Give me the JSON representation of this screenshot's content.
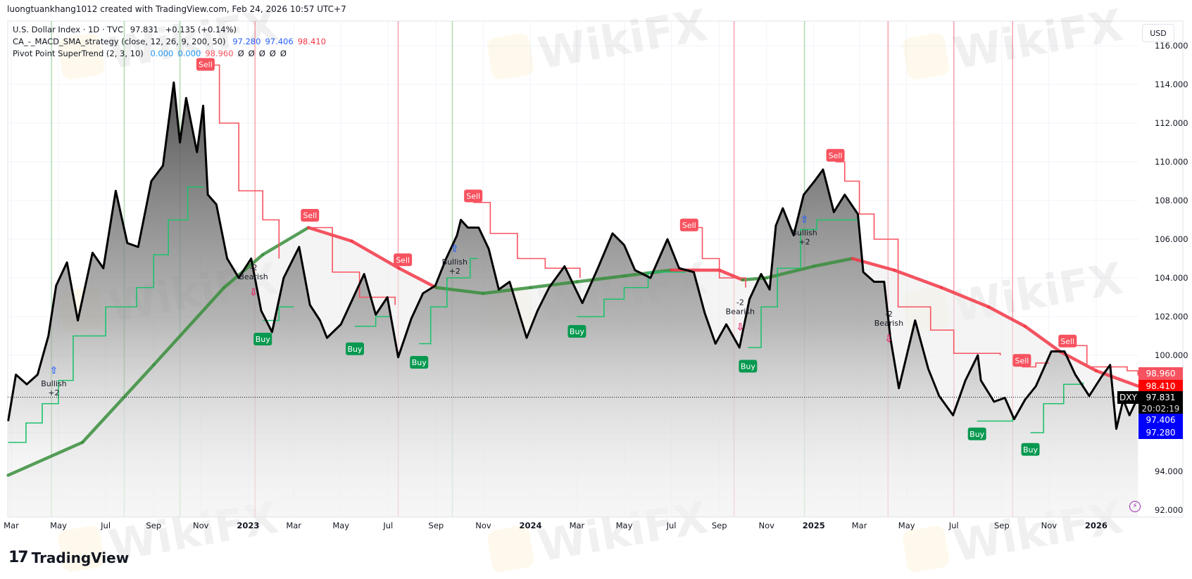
{
  "header": {
    "credit": "luongtuankhang1012 created with TradingView.com, Feb 24, 2026 10:57 UTC+7"
  },
  "legend": {
    "symbol": {
      "title": "U.S. Dollar Index · 1D · TVC",
      "price": "97.831",
      "change": "+0.135 (+0.14%)"
    },
    "strategy": {
      "title": "CA_-_MACD_SMA_strategy (close, 12, 26, 9, 200, 50)",
      "values": [
        "97.280",
        "97.406",
        "98.410"
      ],
      "colors": [
        "#2962ff",
        "#2962ff",
        "#f23645"
      ]
    },
    "supertrend": {
      "title": "Pivot Point SuperTrend (2, 3, 10)",
      "values": [
        "0.000",
        "0.000",
        "98.960",
        "Ø",
        "Ø",
        "Ø",
        "Ø",
        "Ø"
      ],
      "colors": [
        "#2196f3",
        "#2196f3",
        "#f7525f",
        "#131722",
        "#131722",
        "#131722",
        "#131722",
        "#131722"
      ]
    }
  },
  "currency": "USD",
  "watermark": "WikiFX",
  "branding": {
    "logo": "TradingView"
  },
  "price_tags": {
    "supertrend": {
      "value": "98.960",
      "color": "#f7525f"
    },
    "sma200": {
      "value": "98.410",
      "color": "#ff0000"
    },
    "last": {
      "symbol": "DXY",
      "value": "97.831",
      "countdown": "20:02:19",
      "color": "#000000"
    },
    "ma_a": {
      "value": "97.406",
      "color": "#0000ff"
    },
    "ma_b": {
      "value": "97.280",
      "color": "#0000ff"
    }
  },
  "chart_data": {
    "type": "line",
    "symbol": "DXY",
    "y_ticks": [
      "116.000",
      "114.000",
      "112.000",
      "110.000",
      "108.000",
      "106.000",
      "104.000",
      "102.000",
      "100.000",
      "94.000",
      "92.000"
    ],
    "x_ticks": [
      {
        "label": "Mar",
        "date": "2022-03-01"
      },
      {
        "label": "May",
        "date": "2022-05-01"
      },
      {
        "label": "Jul",
        "date": "2022-07-01"
      },
      {
        "label": "Sep",
        "date": "2022-09-01"
      },
      {
        "label": "Nov",
        "date": "2022-11-01"
      },
      {
        "label": "2023",
        "date": "2023-01-01"
      },
      {
        "label": "Mar",
        "date": "2023-03-01"
      },
      {
        "label": "May",
        "date": "2023-05-01"
      },
      {
        "label": "Jul",
        "date": "2023-07-01"
      },
      {
        "label": "Sep",
        "date": "2023-09-01"
      },
      {
        "label": "Nov",
        "date": "2023-11-01"
      },
      {
        "label": "2024",
        "date": "2024-01-01"
      },
      {
        "label": "Mar",
        "date": "2024-03-01"
      },
      {
        "label": "May",
        "date": "2024-05-01"
      },
      {
        "label": "Jul",
        "date": "2024-07-01"
      },
      {
        "label": "Sep",
        "date": "2024-09-01"
      },
      {
        "label": "Nov",
        "date": "2024-11-01"
      },
      {
        "label": "2025",
        "date": "2025-01-01"
      },
      {
        "label": "Mar",
        "date": "2025-03-01"
      },
      {
        "label": "May",
        "date": "2025-05-01"
      },
      {
        "label": "Jul",
        "date": "2025-07-01"
      },
      {
        "label": "Sep",
        "date": "2025-09-01"
      },
      {
        "label": "Nov",
        "date": "2025-11-01"
      },
      {
        "label": "2026",
        "date": "2026-01-01"
      }
    ],
    "close": [
      [
        "2022-02-25",
        96.6
      ],
      [
        "2022-03-07",
        99.0
      ],
      [
        "2022-03-21",
        98.5
      ],
      [
        "2022-04-04",
        99.0
      ],
      [
        "2022-04-18",
        101.0
      ],
      [
        "2022-04-28",
        103.6
      ],
      [
        "2022-05-12",
        104.8
      ],
      [
        "2022-05-26",
        101.8
      ],
      [
        "2022-06-14",
        105.3
      ],
      [
        "2022-06-28",
        104.5
      ],
      [
        "2022-07-14",
        108.5
      ],
      [
        "2022-07-29",
        105.8
      ],
      [
        "2022-08-12",
        105.6
      ],
      [
        "2022-08-29",
        109.0
      ],
      [
        "2022-09-13",
        109.8
      ],
      [
        "2022-09-27",
        114.1
      ],
      [
        "2022-10-05",
        111.0
      ],
      [
        "2022-10-13",
        113.3
      ],
      [
        "2022-10-27",
        110.5
      ],
      [
        "2022-11-04",
        112.9
      ],
      [
        "2022-11-10",
        108.3
      ],
      [
        "2022-11-21",
        107.8
      ],
      [
        "2022-12-05",
        105.0
      ],
      [
        "2022-12-20",
        104.0
      ],
      [
        "2023-01-05",
        105.0
      ],
      [
        "2023-01-18",
        102.3
      ],
      [
        "2023-02-01",
        101.2
      ],
      [
        "2023-02-16",
        104.0
      ],
      [
        "2023-03-08",
        105.6
      ],
      [
        "2023-03-22",
        102.6
      ],
      [
        "2023-04-04",
        101.8
      ],
      [
        "2023-04-13",
        100.9
      ],
      [
        "2023-05-01",
        101.6
      ],
      [
        "2023-05-31",
        104.2
      ],
      [
        "2023-06-15",
        102.1
      ],
      [
        "2023-06-30",
        103.0
      ],
      [
        "2023-07-14",
        99.9
      ],
      [
        "2023-07-31",
        101.9
      ],
      [
        "2023-08-15",
        103.2
      ],
      [
        "2023-08-31",
        103.6
      ],
      [
        "2023-09-14",
        105.0
      ],
      [
        "2023-09-28",
        106.2
      ],
      [
        "2023-10-03",
        107.0
      ],
      [
        "2023-10-12",
        106.6
      ],
      [
        "2023-10-26",
        106.6
      ],
      [
        "2023-11-08",
        105.5
      ],
      [
        "2023-11-21",
        103.4
      ],
      [
        "2023-12-05",
        103.8
      ],
      [
        "2023-12-27",
        100.9
      ],
      [
        "2024-01-10",
        102.3
      ],
      [
        "2024-01-25",
        103.5
      ],
      [
        "2024-02-14",
        104.6
      ],
      [
        "2024-03-08",
        102.7
      ],
      [
        "2024-03-28",
        104.5
      ],
      [
        "2024-04-16",
        106.3
      ],
      [
        "2024-05-01",
        105.7
      ],
      [
        "2024-05-15",
        104.4
      ],
      [
        "2024-06-04",
        104.0
      ],
      [
        "2024-06-26",
        106.0
      ],
      [
        "2024-07-11",
        104.5
      ],
      [
        "2024-07-30",
        104.3
      ],
      [
        "2024-08-13",
        102.2
      ],
      [
        "2024-08-27",
        100.6
      ],
      [
        "2024-09-10",
        101.6
      ],
      [
        "2024-09-27",
        100.4
      ],
      [
        "2024-10-10",
        102.9
      ],
      [
        "2024-10-25",
        104.2
      ],
      [
        "2024-11-05",
        103.4
      ],
      [
        "2024-11-13",
        106.7
      ],
      [
        "2024-11-22",
        107.6
      ],
      [
        "2024-12-06",
        106.2
      ],
      [
        "2024-12-19",
        108.3
      ],
      [
        "2025-01-02",
        109.0
      ],
      [
        "2025-01-13",
        109.6
      ],
      [
        "2025-01-27",
        107.4
      ],
      [
        "2025-02-10",
        108.3
      ],
      [
        "2025-02-27",
        107.3
      ],
      [
        "2025-03-06",
        104.3
      ],
      [
        "2025-03-20",
        103.8
      ],
      [
        "2025-04-02",
        103.8
      ],
      [
        "2025-04-10",
        100.9
      ],
      [
        "2025-04-21",
        98.3
      ],
      [
        "2025-05-12",
        101.8
      ],
      [
        "2025-05-29",
        99.3
      ],
      [
        "2025-06-12",
        97.9
      ],
      [
        "2025-06-30",
        96.9
      ],
      [
        "2025-07-16",
        98.7
      ],
      [
        "2025-08-01",
        100.0
      ],
      [
        "2025-08-05",
        98.7
      ],
      [
        "2025-08-22",
        97.6
      ],
      [
        "2025-09-05",
        97.8
      ],
      [
        "2025-09-17",
        96.7
      ],
      [
        "2025-10-01",
        97.7
      ],
      [
        "2025-10-15",
        98.4
      ],
      [
        "2025-11-04",
        100.2
      ],
      [
        "2025-11-21",
        100.2
      ],
      [
        "2025-12-05",
        99.0
      ],
      [
        "2025-12-23",
        97.9
      ],
      [
        "2026-01-08",
        98.9
      ],
      [
        "2026-01-19",
        99.5
      ],
      [
        "2026-01-27",
        96.2
      ],
      [
        "2026-02-05",
        97.7
      ],
      [
        "2026-02-13",
        96.9
      ],
      [
        "2026-02-24",
        97.831
      ]
    ],
    "sma200": [
      [
        "2022-02-25",
        93.8,
        "up"
      ],
      [
        "2022-06-01",
        95.5,
        "up"
      ],
      [
        "2022-09-01",
        99.5,
        "up"
      ],
      [
        "2022-12-01",
        103.5,
        "up"
      ],
      [
        "2023-01-20",
        105.2,
        "up"
      ],
      [
        "2023-03-20",
        106.6,
        "up"
      ],
      [
        "2023-05-15",
        105.9,
        "down"
      ],
      [
        "2023-07-15",
        104.5,
        "down"
      ],
      [
        "2023-09-01",
        103.5,
        "down"
      ],
      [
        "2023-11-01",
        103.2,
        "up"
      ],
      [
        "2024-01-01",
        103.5,
        "up"
      ],
      [
        "2024-03-01",
        103.8,
        "up"
      ],
      [
        "2024-05-01",
        104.1,
        "up"
      ],
      [
        "2024-07-01",
        104.4,
        "up"
      ],
      [
        "2024-09-01",
        104.4,
        "down"
      ],
      [
        "2024-10-01",
        103.9,
        "down"
      ],
      [
        "2024-11-01",
        104.0,
        "up"
      ],
      [
        "2025-01-01",
        104.6,
        "up"
      ],
      [
        "2025-02-20",
        105.0,
        "up"
      ],
      [
        "2025-04-15",
        104.4,
        "down"
      ],
      [
        "2025-06-15",
        103.5,
        "down"
      ],
      [
        "2025-08-15",
        102.5,
        "down"
      ],
      [
        "2025-10-01",
        101.5,
        "down"
      ],
      [
        "2025-11-15",
        100.2,
        "down"
      ],
      [
        "2026-01-01",
        99.2,
        "down"
      ],
      [
        "2026-02-24",
        98.41,
        "down"
      ]
    ],
    "supertrend_down": [
      [
        [
          "2022-11-07",
          115.0
        ],
        [
          "2022-11-25",
          112.0
        ],
        [
          "2022-12-20",
          108.5
        ],
        [
          "2023-01-20",
          107.0
        ],
        [
          "2023-02-10",
          105.0
        ]
      ],
      [
        [
          "2023-03-22",
          106.6
        ],
        [
          "2023-04-20",
          104.3
        ],
        [
          "2023-05-25",
          103.0
        ],
        [
          "2023-07-10",
          102.6
        ]
      ],
      [
        [
          "2023-10-19",
          107.9
        ],
        [
          "2023-11-10",
          106.3
        ],
        [
          "2023-12-15",
          105.0
        ],
        [
          "2024-01-20",
          104.5
        ],
        [
          "2024-03-05",
          104.0
        ]
      ],
      [
        [
          "2024-07-24",
          106.6
        ],
        [
          "2024-08-10",
          105.0
        ],
        [
          "2024-09-01",
          104.0
        ],
        [
          "2024-10-05",
          103.5
        ]
      ],
      [
        [
          "2025-01-29",
          110.0
        ],
        [
          "2025-02-10",
          109.0
        ],
        [
          "2025-03-01",
          107.3
        ],
        [
          "2025-03-20",
          106.0
        ],
        [
          "2025-04-20",
          102.5
        ],
        [
          "2025-06-01",
          101.3
        ],
        [
          "2025-07-01",
          100.1
        ],
        [
          "2025-08-30",
          100.0
        ]
      ],
      [
        [
          "2025-09-27",
          99.4
        ],
        [
          "2025-10-15",
          99.6
        ],
        [
          "2025-11-01",
          99.6
        ]
      ],
      [
        [
          "2025-11-25",
          100.5
        ],
        [
          "2025-12-20",
          99.4
        ],
        [
          "2026-02-10",
          99.2
        ],
        [
          "2026-02-24",
          98.96
        ]
      ]
    ],
    "supertrend_up": [
      [
        [
          "2022-02-25",
          95.5
        ],
        [
          "2022-03-20",
          96.5
        ],
        [
          "2022-04-10",
          97.5
        ],
        [
          "2022-05-01",
          98.7
        ],
        [
          "2022-05-20",
          101.0
        ],
        [
          "2022-07-01",
          102.5
        ],
        [
          "2022-08-10",
          103.5
        ],
        [
          "2022-09-01",
          105.2
        ],
        [
          "2022-09-20",
          107.0
        ],
        [
          "2022-10-15",
          108.7
        ],
        [
          "2022-11-05",
          108.7
        ]
      ],
      [
        [
          "2023-01-20",
          101.8
        ],
        [
          "2023-02-10",
          102.5
        ],
        [
          "2023-03-01",
          102.5
        ]
      ],
      [
        [
          "2023-05-19",
          101.5
        ],
        [
          "2023-06-15",
          102.0
        ],
        [
          "2023-07-05",
          102.0
        ]
      ],
      [
        [
          "2023-08-10",
          100.6
        ],
        [
          "2023-08-25",
          102.5
        ],
        [
          "2023-09-15",
          104.0
        ],
        [
          "2023-10-15",
          105.0
        ],
        [
          "2023-10-25",
          105.0
        ]
      ],
      [
        [
          "2024-03-01",
          102.0
        ],
        [
          "2024-04-05",
          102.9
        ],
        [
          "2024-05-01",
          103.5
        ],
        [
          "2024-06-01",
          104.3
        ],
        [
          "2024-07-20",
          104.3
        ]
      ],
      [
        [
          "2024-10-08",
          100.4
        ],
        [
          "2024-10-25",
          102.5
        ],
        [
          "2024-11-15",
          104.5
        ],
        [
          "2024-12-15",
          106.5
        ],
        [
          "2025-01-05",
          107.0
        ],
        [
          "2025-02-28",
          107.0
        ]
      ],
      [
        [
          "2025-07-31",
          96.6
        ],
        [
          "2025-09-15",
          96.8
        ]
      ],
      [
        [
          "2025-10-08",
          96.0
        ],
        [
          "2025-10-25",
          97.5
        ],
        [
          "2025-11-20",
          98.5
        ],
        [
          "2025-12-15",
          98.6
        ]
      ]
    ],
    "vertical_markers": [
      {
        "date": "2022-04-22",
        "color": "#4caf50"
      },
      {
        "date": "2022-07-25",
        "color": "#4caf50"
      },
      {
        "date": "2022-10-05",
        "color": "#4caf50"
      },
      {
        "date": "2023-01-10",
        "color": "#f23645"
      },
      {
        "date": "2023-07-14",
        "color": "#f23645"
      },
      {
        "date": "2023-09-22",
        "color": "#4caf50"
      },
      {
        "date": "2024-09-20",
        "color": "#f23645"
      },
      {
        "date": "2024-12-20",
        "color": "#4caf50"
      },
      {
        "date": "2025-04-07",
        "color": "#f23645"
      },
      {
        "date": "2025-07-01",
        "color": "#f23645"
      },
      {
        "date": "2025-09-15",
        "color": "#f23645"
      }
    ],
    "signals": [
      {
        "type": "sell",
        "label": "Sell",
        "date": "2022-11-07",
        "price": 115.0
      },
      {
        "type": "sell",
        "label": "Sell",
        "date": "2023-03-22",
        "price": 107.2
      },
      {
        "type": "sell",
        "label": "Sell",
        "date": "2023-07-20",
        "price": 104.9
      },
      {
        "type": "sell",
        "label": "Sell",
        "date": "2023-10-19",
        "price": 108.2
      },
      {
        "type": "sell",
        "label": "Sell",
        "date": "2024-07-24",
        "price": 106.7
      },
      {
        "type": "sell",
        "label": "Sell",
        "date": "2025-01-29",
        "price": 110.3
      },
      {
        "type": "sell",
        "label": "Sell",
        "date": "2025-09-27",
        "price": 99.7
      },
      {
        "type": "sell",
        "label": "Sell",
        "date": "2025-11-25",
        "price": 100.7
      },
      {
        "type": "buy",
        "label": "Buy",
        "date": "2023-01-20",
        "price": 100.8
      },
      {
        "type": "buy",
        "label": "Buy",
        "date": "2023-05-19",
        "price": 100.3
      },
      {
        "type": "buy",
        "label": "Buy",
        "date": "2023-08-10",
        "price": 99.6
      },
      {
        "type": "buy",
        "label": "Buy",
        "date": "2024-03-01",
        "price": 101.2
      },
      {
        "type": "buy",
        "label": "Buy",
        "date": "2024-10-08",
        "price": 99.4
      },
      {
        "type": "buy",
        "label": "Buy",
        "date": "2025-07-31",
        "price": 95.9
      },
      {
        "type": "buy",
        "label": "Buy",
        "date": "2025-10-08",
        "price": 95.1
      }
    ],
    "divergences": [
      {
        "kind": "bullish",
        "label": "Bullish",
        "score": "+2",
        "date": "2022-04-25",
        "price": 98.4
      },
      {
        "kind": "bearish",
        "label": "Bearish",
        "score": "-2",
        "date": "2023-01-08",
        "price": 104.4
      },
      {
        "kind": "bullish",
        "label": "Bullish",
        "score": "+2",
        "date": "2023-09-25",
        "price": 104.7
      },
      {
        "kind": "bearish",
        "label": "Bearish",
        "score": "-2",
        "date": "2024-09-28",
        "price": 102.6
      },
      {
        "kind": "bullish",
        "label": "Bullish",
        "score": "+2",
        "date": "2024-12-20",
        "price": 106.2
      },
      {
        "kind": "bearish",
        "label": "Bearish",
        "score": "-2",
        "date": "2025-04-08",
        "price": 102.0
      }
    ]
  }
}
